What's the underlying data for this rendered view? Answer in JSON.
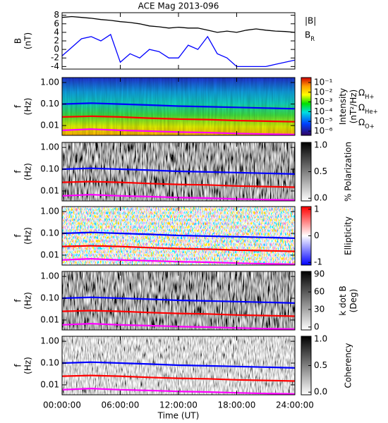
{
  "chart_data": [
    {
      "type": "line",
      "title": "ACE Mag 2013-096",
      "ylabel": [
        "B",
        "(nT)"
      ],
      "x": [
        0,
        1,
        2,
        3,
        4,
        5,
        6,
        7,
        8,
        9,
        10,
        11,
        12,
        13,
        14,
        15,
        16,
        17,
        18,
        19,
        20,
        21,
        22,
        23,
        24
      ],
      "xlim": [
        0,
        24
      ],
      "ylim": [
        -4.6,
        8.6
      ],
      "yticks": [
        -4,
        -2,
        0,
        2,
        4,
        6,
        8
      ],
      "series": [
        {
          "name": "|B|",
          "color": "#000000",
          "values": [
            7.5,
            7.7,
            7.5,
            7.3,
            7.0,
            6.8,
            6.5,
            6.3,
            6.0,
            5.5,
            5.3,
            5.0,
            5.2,
            5.0,
            5.0,
            4.5,
            4.0,
            4.3,
            4.0,
            4.5,
            4.8,
            4.5,
            4.3,
            4.2,
            4.0
          ]
        },
        {
          "name": "B_R",
          "color": "#0000ff",
          "values": [
            -1.5,
            0.5,
            2.5,
            3.0,
            2.0,
            3.5,
            -3.0,
            -1.0,
            -2.0,
            0.0,
            -0.5,
            -2.0,
            -2.0,
            1.0,
            0.0,
            3.0,
            -1.0,
            -2.0,
            -4.0,
            -4.0,
            -4.0,
            -4.0,
            -3.5,
            -3.0,
            -2.5
          ]
        }
      ]
    },
    {
      "type": "spectrogram",
      "ylabel": [
        "f",
        "(Hz)"
      ],
      "log": true,
      "ylim": [
        0.0035,
        1.7
      ],
      "yticks": [
        {
          "value": 1,
          "label": "1.00"
        },
        {
          "value": 0.1,
          "label": "0.10"
        },
        {
          "value": 0.01,
          "label": "0.01"
        }
      ],
      "colormap": "rainbow",
      "colorbar": {
        "label": [
          "Intensity",
          "(nT²/Hz)"
        ],
        "log": true,
        "lim": [
          3.7e-07,
          0.32
        ],
        "ticks": [
          {
            "value": 0.1,
            "label": "10⁻¹"
          },
          {
            "value": 0.01,
            "label": "10⁻²"
          },
          {
            "value": 0.001,
            "label": "10⁻³"
          },
          {
            "value": 0.0001,
            "label": "10⁻⁴"
          },
          {
            "value": 1e-05,
            "label": "10⁻⁵"
          },
          {
            "value": 1e-06,
            "label": "10⁻⁶"
          }
        ]
      },
      "x": [
        0,
        3,
        6,
        9,
        12,
        15,
        18,
        21,
        24
      ],
      "xlim": [
        0,
        24
      ],
      "series": [
        {
          "name": "Ω_H+",
          "color": "#0000ff",
          "values": [
            0.1,
            0.11,
            0.1,
            0.09,
            0.08,
            0.075,
            0.07,
            0.065,
            0.06
          ]
        },
        {
          "name": "Ω_He+",
          "color": "#ff0000",
          "values": [
            0.025,
            0.027,
            0.025,
            0.022,
            0.02,
            0.019,
            0.017,
            0.016,
            0.015
          ]
        },
        {
          "name": "Ω_O+",
          "color": "#ff00ff",
          "values": [
            0.006,
            0.0068,
            0.006,
            0.0055,
            0.005,
            0.0047,
            0.0043,
            0.004,
            0.0038
          ]
        }
      ]
    },
    {
      "type": "spectrogram",
      "ylabel": [
        "f",
        "(Hz)"
      ],
      "log": true,
      "ylim": [
        0.0035,
        1.7
      ],
      "yticks": [
        {
          "value": 1,
          "label": "1.00"
        },
        {
          "value": 0.1,
          "label": "0.10"
        },
        {
          "value": 0.01,
          "label": "0.01"
        }
      ],
      "colormap": "gray",
      "colorbar": {
        "label": [
          "% Polarization"
        ],
        "log": false,
        "lim": [
          -0.05,
          1.05
        ],
        "ticks": [
          {
            "value": 0,
            "label": "0.0"
          },
          {
            "value": 0.5,
            "label": "0.5"
          },
          {
            "value": 1,
            "label": "1.0"
          }
        ]
      },
      "x": [
        0,
        3,
        6,
        9,
        12,
        15,
        18,
        21,
        24
      ],
      "xlim": [
        0,
        24
      ],
      "series": [
        {
          "color": "#0000ff",
          "values": [
            0.1,
            0.11,
            0.1,
            0.09,
            0.08,
            0.075,
            0.07,
            0.065,
            0.06
          ]
        },
        {
          "color": "#ff0000",
          "values": [
            0.025,
            0.027,
            0.025,
            0.022,
            0.02,
            0.019,
            0.017,
            0.016,
            0.015
          ]
        },
        {
          "color": "#ff00ff",
          "values": [
            0.006,
            0.0068,
            0.006,
            0.0055,
            0.005,
            0.0047,
            0.0043,
            0.004,
            0.0038
          ]
        }
      ]
    },
    {
      "type": "spectrogram",
      "ylabel": [
        "f",
        "(Hz)"
      ],
      "log": true,
      "ylim": [
        0.0035,
        1.7
      ],
      "yticks": [
        {
          "value": 1,
          "label": "1.00"
        },
        {
          "value": 0.1,
          "label": "0.10"
        },
        {
          "value": 0.01,
          "label": "0.01"
        }
      ],
      "colormap": "bwr",
      "colorbar": {
        "label": [
          "Ellipticity"
        ],
        "log": false,
        "lim": [
          -1.1,
          1.1
        ],
        "ticks": [
          1,
          0,
          -1
        ]
      },
      "x": [
        0,
        3,
        6,
        9,
        12,
        15,
        18,
        21,
        24
      ],
      "xlim": [
        0,
        24
      ],
      "series": [
        {
          "color": "#0000ff",
          "values": [
            0.1,
            0.11,
            0.1,
            0.09,
            0.08,
            0.075,
            0.07,
            0.065,
            0.06
          ]
        },
        {
          "color": "#ff0000",
          "values": [
            0.025,
            0.027,
            0.025,
            0.022,
            0.02,
            0.019,
            0.017,
            0.016,
            0.015
          ]
        },
        {
          "color": "#ff00ff",
          "values": [
            0.006,
            0.0068,
            0.006,
            0.0055,
            0.005,
            0.0047,
            0.0043,
            0.004,
            0.0038
          ]
        }
      ]
    },
    {
      "type": "spectrogram",
      "ylabel": [
        "f",
        "(Hz)"
      ],
      "log": true,
      "ylim": [
        0.0035,
        1.7
      ],
      "yticks": [
        {
          "value": 1,
          "label": "1.00"
        },
        {
          "value": 0.1,
          "label": "0.10"
        },
        {
          "value": 0.01,
          "label": "0.01"
        }
      ],
      "colormap": "gray",
      "colorbar": {
        "label": [
          "k dot B",
          "(Deg)"
        ],
        "log": false,
        "lim": [
          -5,
          95
        ],
        "ticks": [
          90,
          60,
          30,
          0
        ]
      },
      "x": [
        0,
        3,
        6,
        9,
        12,
        15,
        18,
        21,
        24
      ],
      "xlim": [
        0,
        24
      ],
      "series": [
        {
          "color": "#0000ff",
          "values": [
            0.1,
            0.11,
            0.1,
            0.09,
            0.08,
            0.075,
            0.07,
            0.065,
            0.06
          ]
        },
        {
          "color": "#ff0000",
          "values": [
            0.025,
            0.027,
            0.025,
            0.022,
            0.02,
            0.019,
            0.017,
            0.016,
            0.015
          ]
        },
        {
          "color": "#ff00ff",
          "values": [
            0.006,
            0.0068,
            0.006,
            0.0055,
            0.005,
            0.0047,
            0.0043,
            0.004,
            0.0038
          ]
        }
      ]
    },
    {
      "type": "spectrogram",
      "ylabel": [
        "f",
        "(Hz)"
      ],
      "log": true,
      "ylim": [
        0.0035,
        1.7
      ],
      "yticks": [
        {
          "value": 1,
          "label": "1.00"
        },
        {
          "value": 0.1,
          "label": "0.10"
        },
        {
          "value": 0.01,
          "label": "0.01"
        }
      ],
      "colormap": "gray",
      "colorbar": {
        "label": [
          "Coherency"
        ],
        "log": false,
        "lim": [
          -0.05,
          1.05
        ],
        "ticks": [
          {
            "value": 0,
            "label": "0.0"
          },
          {
            "value": 0.5,
            "label": "0.5"
          },
          {
            "value": 1,
            "label": "1.0"
          }
        ]
      },
      "x": [
        0,
        3,
        6,
        9,
        12,
        15,
        18,
        21,
        24
      ],
      "xlim": [
        0,
        24
      ],
      "xlabel": "Time (UT)",
      "xticks": [
        {
          "value": 0,
          "label": "00:00:00"
        },
        {
          "value": 6,
          "label": "06:00:00"
        },
        {
          "value": 12,
          "label": "12:00:00"
        },
        {
          "value": 18,
          "label": "18:00:00"
        },
        {
          "value": 24,
          "label": "24:00:00"
        }
      ],
      "series": [
        {
          "color": "#0000ff",
          "values": [
            0.1,
            0.11,
            0.1,
            0.09,
            0.08,
            0.075,
            0.07,
            0.065,
            0.06
          ]
        },
        {
          "color": "#ff0000",
          "values": [
            0.025,
            0.027,
            0.025,
            0.022,
            0.02,
            0.019,
            0.017,
            0.016,
            0.015
          ]
        },
        {
          "color": "#ff00ff",
          "values": [
            0.006,
            0.0068,
            0.006,
            0.0055,
            0.005,
            0.0047,
            0.0043,
            0.004,
            0.0038
          ]
        }
      ]
    }
  ]
}
